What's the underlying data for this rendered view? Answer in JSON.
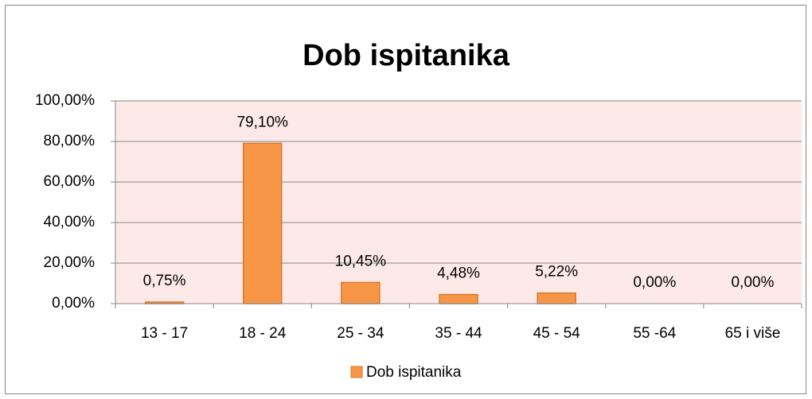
{
  "chart_data": {
    "type": "bar",
    "title": "Dob ispitanika",
    "categories": [
      "13 - 17",
      "18 - 24",
      "25 - 34",
      "35 - 44",
      "45 - 54",
      "55 -64",
      "65 i više"
    ],
    "series": [
      {
        "name": "Dob ispitanika",
        "color": "#f79646",
        "values": [
          0.75,
          79.1,
          10.45,
          4.48,
          5.22,
          0,
          0
        ],
        "value_labels": [
          "0,75%",
          "79,10%",
          "10,45%",
          "4,48%",
          "5,22%",
          "0,00%",
          "0,00%"
        ]
      }
    ],
    "ylim": [
      0,
      100
    ],
    "yticks": [
      {
        "value": 0,
        "label": "0,00%"
      },
      {
        "value": 20,
        "label": "20,00%"
      },
      {
        "value": 40,
        "label": "40,00%"
      },
      {
        "value": 60,
        "label": "60,00%"
      },
      {
        "value": 80,
        "label": "80,00%"
      },
      {
        "value": 100,
        "label": "100,00%"
      }
    ],
    "grid": true,
    "legend": "bottom"
  }
}
